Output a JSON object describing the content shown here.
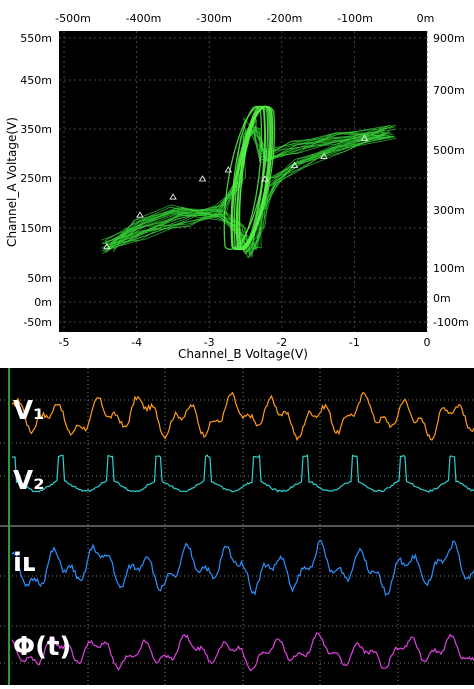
{
  "chart_data": [
    {
      "type": "scatter",
      "title": "",
      "xlabel": "Channel_B Voltage(V)",
      "ylabel": "Channel_A Voltage(V)",
      "x_ticks": [
        "-5",
        "-4",
        "-3",
        "-2",
        "-1",
        "0"
      ],
      "xlim": [
        -5,
        0
      ],
      "top_ticks": [
        "-500m",
        "-400m",
        "-300m",
        "-200m",
        "-100m",
        "0m"
      ],
      "left_ticks": [
        "550m",
        "450m",
        "350m",
        "250m",
        "150m",
        "50m",
        "0m",
        "-50m"
      ],
      "right_ticks": [
        "900m",
        "700m",
        "500m",
        "300m",
        "100m",
        "0m",
        "-100m"
      ],
      "grid": true,
      "background": "#000000",
      "trace_color": "#33cc33",
      "marker_color": "#ffffff",
      "markers": [
        {
          "x": -4.35,
          "y": 0.14
        },
        {
          "x": -3.9,
          "y": 0.21
        },
        {
          "x": -3.45,
          "y": 0.25
        },
        {
          "x": -3.05,
          "y": 0.29
        },
        {
          "x": -2.7,
          "y": 0.31
        },
        {
          "x": -2.2,
          "y": 0.29
        },
        {
          "x": -1.8,
          "y": 0.32
        },
        {
          "x": -1.4,
          "y": 0.34
        },
        {
          "x": -0.85,
          "y": 0.38
        }
      ],
      "series": [
        {
          "x": [
            -4.35,
            -3.9,
            -3.3,
            -2.8,
            -2.55,
            -2.45,
            -2.4,
            -2.3,
            -2.2,
            -1.8,
            -1.2,
            -0.5
          ],
          "y": [
            0.14,
            0.17,
            0.2,
            0.22,
            0.28,
            0.38,
            0.41,
            0.39,
            0.34,
            0.36,
            0.38,
            0.395
          ]
        },
        {
          "x": [
            -0.5,
            -1.2,
            -1.8,
            -2.1,
            -2.25,
            -2.3,
            -2.4,
            -2.55,
            -2.8,
            -3.4,
            -3.9,
            -4.35
          ],
          "y": [
            0.395,
            0.36,
            0.32,
            0.28,
            0.2,
            0.15,
            0.13,
            0.18,
            0.21,
            0.22,
            0.19,
            0.14
          ]
        }
      ]
    },
    {
      "type": "line",
      "title": "",
      "background": "#000000",
      "traces": [
        {
          "label": "V₁",
          "color": "#ff9a1a",
          "amplitude": 0.9,
          "seed": 1
        },
        {
          "label": "V₂",
          "color": "#2ecfcf",
          "amplitude": 0.8,
          "seed": 2
        },
        {
          "label": "iʟ",
          "color": "#2d8fff",
          "amplitude": 1.0,
          "seed": 3
        },
        {
          "label": "Φ(t)",
          "color": "#e040e0",
          "amplitude": 0.7,
          "seed": 4
        }
      ]
    }
  ]
}
